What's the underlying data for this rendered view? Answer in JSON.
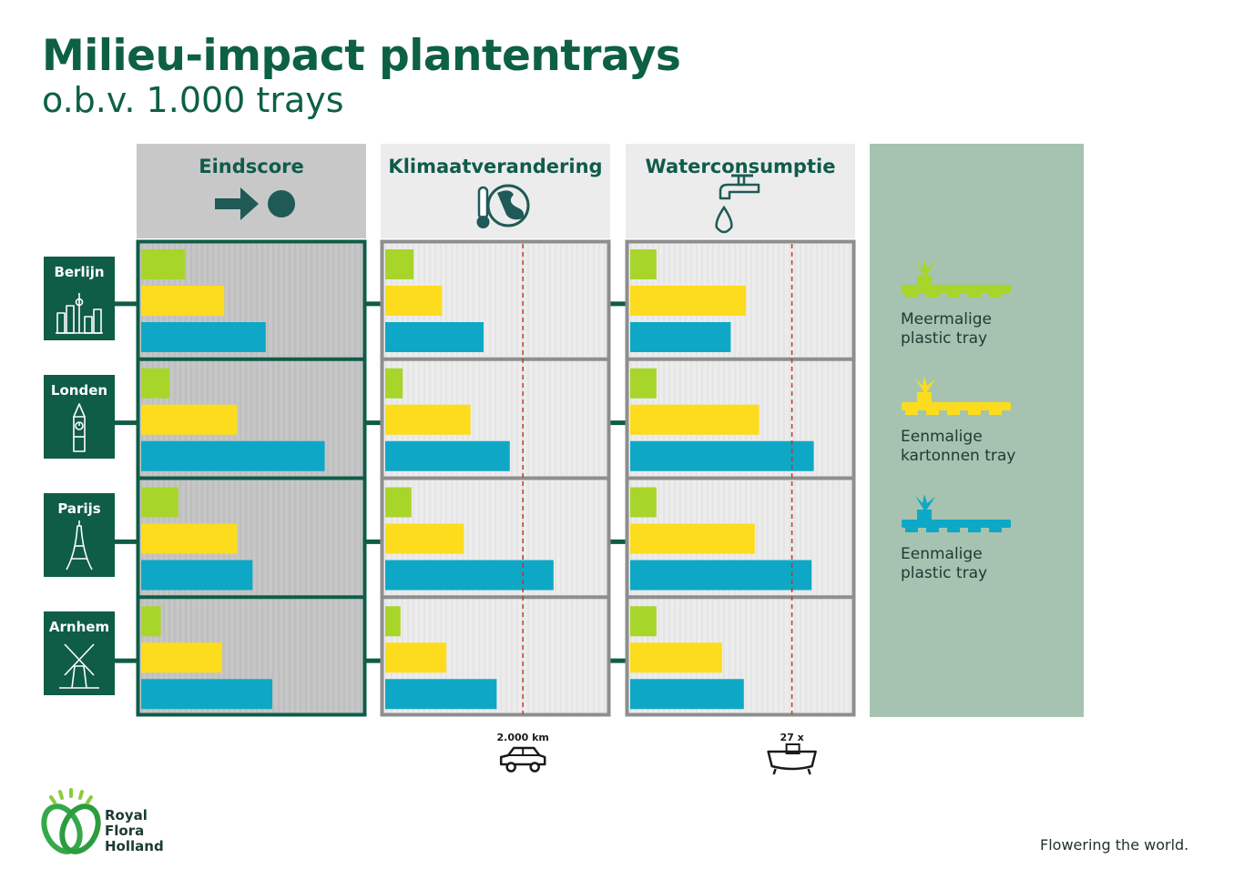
{
  "title": "Milieu-impact plantentrays",
  "subtitle": "o.b.v. 1.000 trays",
  "chart_data": {
    "type": "bar",
    "orientation": "horizontal",
    "categories": [
      "Berlijn",
      "Londen",
      "Parijs",
      "Arnhem"
    ],
    "panels": [
      {
        "title": "Eindscore",
        "icon": "arrow-to-dot-icon",
        "series": [
          {
            "name": "Meermalige plastic tray",
            "values": [
              0.2,
              0.13,
              0.17,
              0.09
            ]
          },
          {
            "name": "Eenmalige kartonnen tray",
            "values": [
              0.38,
              0.44,
              0.44,
              0.37
            ]
          },
          {
            "name": "Eenmalige plastic tray",
            "values": [
              0.57,
              0.84,
              0.51,
              0.6
            ]
          }
        ],
        "xlim": [
          0,
          1
        ]
      },
      {
        "title": "Klimaatverandering",
        "icon": "thermometer-globe-icon",
        "reference": {
          "value": 0.63,
          "label": "2.000 km",
          "icon": "car-icon"
        },
        "series": [
          {
            "name": "Meermalige plastic tray",
            "values": [
              0.13,
              0.08,
              0.12,
              0.07
            ]
          },
          {
            "name": "Eenmalige kartonnen tray",
            "values": [
              0.26,
              0.39,
              0.36,
              0.28
            ]
          },
          {
            "name": "Eenmalige plastic tray",
            "values": [
              0.45,
              0.57,
              0.77,
              0.51
            ]
          }
        ],
        "xlim": [
          0,
          1
        ]
      },
      {
        "title": "Waterconsumptie",
        "icon": "tap-water-icon",
        "reference": {
          "value": 0.74,
          "label": "27 x",
          "icon": "bathtub-icon"
        },
        "series": [
          {
            "name": "Meermalige plastic tray",
            "values": [
              0.12,
              0.12,
              0.12,
              0.12
            ]
          },
          {
            "name": "Eenmalige kartonnen tray",
            "values": [
              0.53,
              0.59,
              0.57,
              0.42
            ]
          },
          {
            "name": "Eenmalige plastic tray",
            "values": [
              0.46,
              0.84,
              0.83,
              0.52
            ]
          }
        ],
        "xlim": [
          0,
          1
        ]
      }
    ],
    "legend": {
      "position": "right",
      "items": [
        {
          "line1": "Meermalige",
          "line2": "plastic tray",
          "color": "#a8d52a"
        },
        {
          "line1": "Eenmalige",
          "line2": "kartonnen tray",
          "color": "#fcdc1c"
        },
        {
          "line1": "Eenmalige",
          "line2": "plastic tray",
          "color": "#0ea8c6"
        }
      ]
    },
    "city_icons": [
      "skyline-icon",
      "big-ben-icon",
      "eiffel-tower-icon",
      "windmill-icon"
    ],
    "colors": {
      "dark_green": "#0f5c47",
      "legend_bg": "#a5c3b0",
      "header_gray": "#c8c8c8",
      "header_light": "#ececec",
      "reference_line": "#c0392b"
    }
  },
  "footer": {
    "logo_lines": [
      "Royal",
      "Flora",
      "Holland"
    ],
    "tagline": "Flowering the world."
  }
}
